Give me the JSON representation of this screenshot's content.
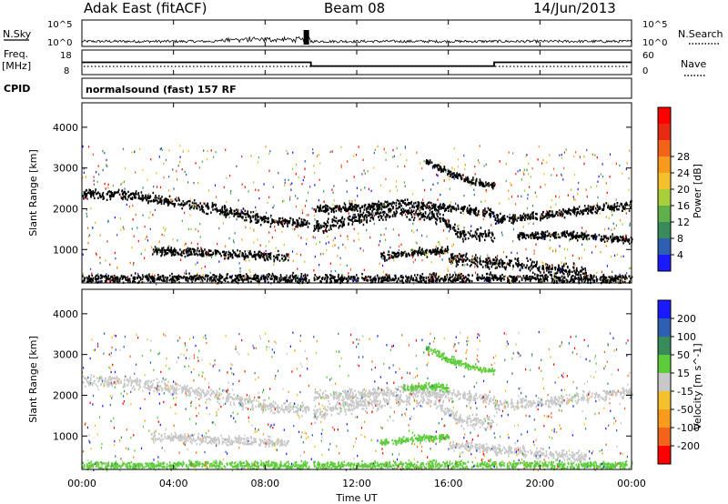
{
  "header": {
    "radar": "Adak East (fitACF)",
    "beam": "Beam 08",
    "date": "14/Jun/2013"
  },
  "side_labels": {
    "nsky": "N.Sky",
    "freq_line1": "Freq.",
    "freq_line2": "[MHz]",
    "cpid": "CPID",
    "nsearch": "N.Search",
    "nave": "Nave"
  },
  "cpid_text": "normalsound (fast) 157 RF",
  "colors": {
    "power": [
      "#1a1aff",
      "#2e5fb0",
      "#3a8b5c",
      "#5fb04a",
      "#a8cf3a",
      "#f2c12c",
      "#f79a1e",
      "#f2641a",
      "#e82a12",
      "#ff0000"
    ],
    "velocity": [
      "#1a1aff",
      "#2e5fb0",
      "#3a8b5c",
      "#5ccc3a",
      "#c8c8c8",
      "#f2c12c",
      "#f79a1e",
      "#f2641a",
      "#ff0000"
    ]
  },
  "chart_data": [
    {
      "type": "line",
      "panel": "nsky_nsearch",
      "ylabel_left": "N.Sky",
      "ylabel_right": "N.Search",
      "left_ticks": [
        "10^5",
        "10^0"
      ],
      "right_ticks": [
        "10^5",
        "10^0"
      ],
      "x_hours": [
        0,
        24
      ],
      "notable_peak_hour": 9.8
    },
    {
      "type": "line",
      "panel": "frequency_nave",
      "ylabel_left": "Freq. [MHz]",
      "ylabel_right": "Nave",
      "left_ticks": [
        18,
        8
      ],
      "right_ticks": [
        60,
        0
      ],
      "freq_steps": [
        {
          "from_hour": 0,
          "to_hour": 10,
          "value_mhz": 12.5
        },
        {
          "from_hour": 10,
          "to_hour": 18,
          "value_mhz": 10.5
        },
        {
          "from_hour": 18,
          "to_hour": 24,
          "value_mhz": 12.5
        }
      ],
      "nave_level": 20
    },
    {
      "type": "heatmap",
      "panel": "power",
      "ylabel": "Slant Range [km]",
      "ylim": [
        180,
        4600
      ],
      "y_ticks": [
        1000,
        2000,
        3000,
        4000
      ],
      "colorbar_label": "Power [dB]",
      "colorbar_ticks": [
        4,
        8,
        12,
        16,
        20,
        24,
        28
      ],
      "crange": [
        0,
        30
      ],
      "bands": [
        {
          "x": [
            0,
            2,
            4,
            6,
            8,
            10
          ],
          "y": [
            2400,
            2350,
            2200,
            2000,
            1750,
            1650
          ],
          "width_km": 180,
          "value_db": 18
        },
        {
          "x": [
            10,
            12,
            14,
            15.5,
            16.5,
            18
          ],
          "y": [
            1550,
            1800,
            1950,
            1850,
            1400,
            1350
          ],
          "width_km": 220,
          "value_db": 24
        },
        {
          "x": [
            10,
            12,
            14,
            16,
            18
          ],
          "y": [
            2000,
            2050,
            2150,
            2050,
            1900
          ],
          "width_km": 150,
          "value_db": 14
        },
        {
          "x": [
            18,
            20,
            22,
            24
          ],
          "y": [
            1750,
            1850,
            2000,
            2100
          ],
          "width_km": 160,
          "value_db": 13
        },
        {
          "x": [
            16,
            18,
            20,
            22
          ],
          "y": [
            800,
            700,
            600,
            500
          ],
          "width_km": 220,
          "value_db": 22
        },
        {
          "x": [
            3,
            5,
            7,
            9
          ],
          "y": [
            1000,
            950,
            900,
            850
          ],
          "width_km": 150,
          "value_db": 9
        },
        {
          "x": [
            13,
            14.5,
            16
          ],
          "y": [
            850,
            950,
            1000
          ],
          "width_km": 140,
          "value_db": 10
        },
        {
          "x": [
            15,
            16,
            17,
            18
          ],
          "y": [
            3200,
            2900,
            2700,
            2600
          ],
          "width_km": 120,
          "value_db": 18
        },
        {
          "x": [
            19,
            21,
            23,
            24
          ],
          "y": [
            1350,
            1400,
            1300,
            1250
          ],
          "width_km": 140,
          "value_db": 9
        },
        {
          "x": [
            0,
            6,
            12,
            18,
            24
          ],
          "y": [
            300,
            320,
            300,
            320,
            300
          ],
          "width_km": 160,
          "value_db": 12
        }
      ]
    },
    {
      "type": "heatmap",
      "panel": "velocity",
      "ylabel": "Slant Range [km]",
      "ylim": [
        180,
        4600
      ],
      "y_ticks": [
        1000,
        2000,
        3000,
        4000
      ],
      "colorbar_label": "Velocity [m s^-1]",
      "colorbar_ticks": [
        200,
        100,
        50,
        15,
        -15,
        -50,
        -100,
        -200
      ],
      "crange": [
        -250,
        250
      ],
      "bands": [
        {
          "x": [
            0,
            2,
            4,
            6,
            8,
            10
          ],
          "y": [
            2400,
            2350,
            2200,
            2000,
            1750,
            1650
          ],
          "width_km": 220,
          "value": 0
        },
        {
          "x": [
            10,
            12,
            14,
            15.5,
            16.5,
            18
          ],
          "y": [
            1550,
            1800,
            1950,
            1850,
            1400,
            1350
          ],
          "width_km": 260,
          "value": 0
        },
        {
          "x": [
            10,
            12,
            14,
            16,
            18
          ],
          "y": [
            2000,
            2050,
            2150,
            2050,
            1900
          ],
          "width_km": 180,
          "value": 0
        },
        {
          "x": [
            18,
            20,
            22,
            24
          ],
          "y": [
            1750,
            1850,
            2000,
            2100
          ],
          "width_km": 180,
          "value": 0
        },
        {
          "x": [
            16,
            18,
            20,
            22
          ],
          "y": [
            800,
            700,
            600,
            500
          ],
          "width_km": 200,
          "value": 0
        },
        {
          "x": [
            3,
            5,
            7,
            9
          ],
          "y": [
            1000,
            950,
            900,
            850
          ],
          "width_km": 150,
          "value": 0
        },
        {
          "x": [
            13,
            14.5,
            16
          ],
          "y": [
            850,
            950,
            1000
          ],
          "width_km": 120,
          "value": 60
        },
        {
          "x": [
            15,
            16,
            17,
            18
          ],
          "y": [
            3200,
            2900,
            2700,
            2600
          ],
          "width_km": 120,
          "value": 60
        },
        {
          "x": [
            14,
            15,
            16
          ],
          "y": [
            2200,
            2250,
            2200
          ],
          "width_km": 140,
          "value": 60
        },
        {
          "x": [
            0,
            6,
            12,
            18,
            24
          ],
          "y": [
            300,
            320,
            300,
            320,
            300
          ],
          "width_km": 140,
          "value": 50
        }
      ]
    }
  ],
  "x_axis": {
    "label": "Time UT",
    "ticks": [
      "00:00",
      "04:00",
      "08:00",
      "12:00",
      "16:00",
      "20:00",
      "00:00"
    ],
    "range_hours": [
      0,
      24
    ]
  }
}
